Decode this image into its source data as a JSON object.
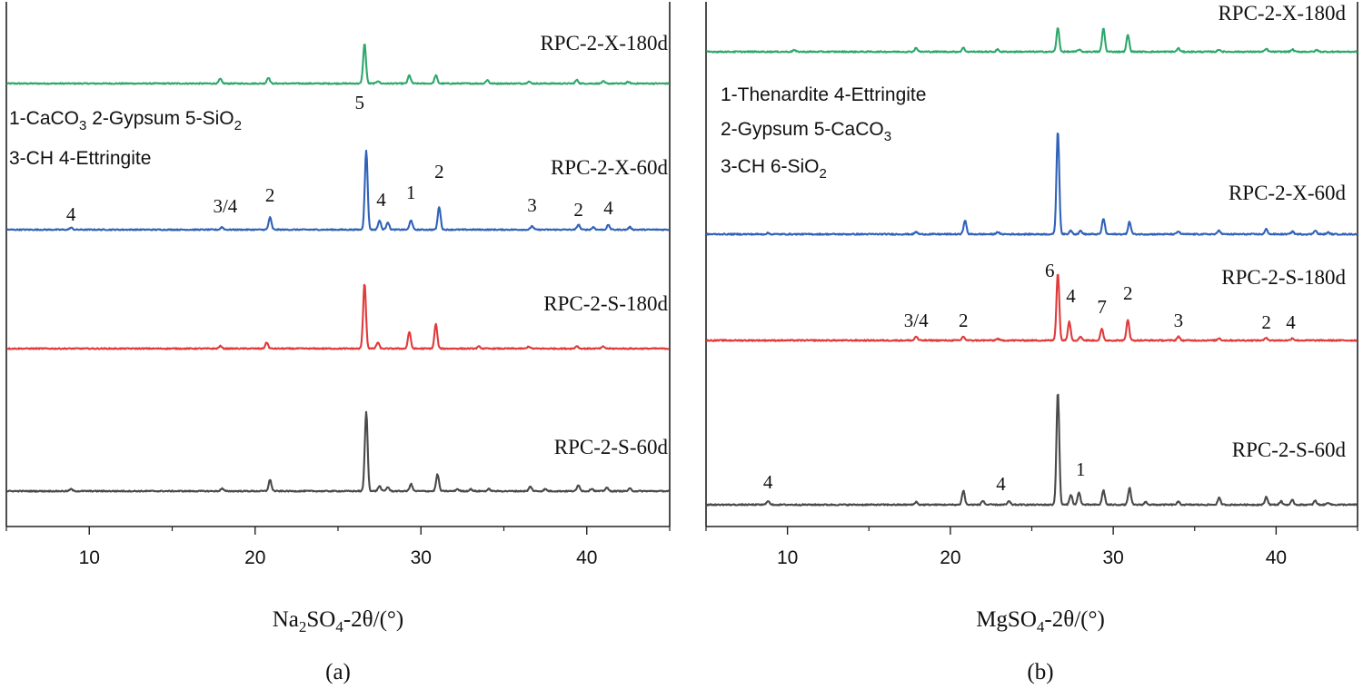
{
  "chart_data": [
    {
      "type": "line",
      "panel_label": "(a)",
      "xlabel": {
        "main": "Na",
        "sub": "2",
        "mid": "SO",
        "sub2": "4",
        "rest": "-2θ/(°)"
      },
      "xlim": [
        5,
        45
      ],
      "xticks": [
        10,
        20,
        30,
        40
      ],
      "tick_labels": [
        "10",
        "20",
        "30",
        "40"
      ],
      "legend_lines": [
        [
          {
            "t": "1-CaCO"
          },
          {
            "t": "3",
            "sub": true
          },
          {
            "t": "  2-Gypsum    5-SiO"
          },
          {
            "t": "2",
            "sub": true
          }
        ],
        [
          {
            "t": "3-CH          4-Ettringite"
          }
        ]
      ],
      "series": [
        {
          "name": "RPC-2-X-180d",
          "color": "#2ea86a",
          "peaks": [
            [
              17.9,
              0.09
            ],
            [
              20.8,
              0.12
            ],
            [
              26.6,
              0.78
            ],
            [
              27.4,
              0.05
            ],
            [
              29.3,
              0.16
            ],
            [
              30.9,
              0.16
            ],
            [
              34.0,
              0.07
            ],
            [
              36.5,
              0.04
            ],
            [
              39.4,
              0.07
            ],
            [
              41.0,
              0.04
            ],
            [
              42.5,
              0.03
            ]
          ],
          "peak_labels": []
        },
        {
          "name": "RPC-2-X-60d",
          "color": "#3062b8",
          "peaks": [
            [
              8.9,
              0.04
            ],
            [
              18.0,
              0.05
            ],
            [
              20.9,
              0.24
            ],
            [
              26.7,
              1.55
            ],
            [
              27.5,
              0.18
            ],
            [
              28.0,
              0.15
            ],
            [
              29.4,
              0.19
            ],
            [
              31.1,
              0.45
            ],
            [
              36.7,
              0.07
            ],
            [
              39.5,
              0.1
            ],
            [
              40.4,
              0.05
            ],
            [
              41.3,
              0.09
            ],
            [
              42.6,
              0.05
            ]
          ],
          "peak_labels": [
            [
              "4",
              8.9
            ],
            [
              "3/4",
              18.2
            ],
            [
              "2",
              20.9
            ],
            [
              "5",
              26.3
            ],
            [
              "4",
              27.6
            ],
            [
              "1",
              29.4
            ],
            [
              "2",
              31.1
            ],
            [
              "3",
              36.7
            ],
            [
              "2",
              39.5
            ],
            [
              "4",
              41.3
            ]
          ]
        },
        {
          "name": "RPC-2-S-180d",
          "color": "#e03a3a",
          "peaks": [
            [
              17.9,
              0.05
            ],
            [
              20.7,
              0.12
            ],
            [
              26.6,
              1.28
            ],
            [
              27.4,
              0.12
            ],
            [
              29.3,
              0.33
            ],
            [
              30.9,
              0.48
            ],
            [
              33.5,
              0.04
            ],
            [
              36.5,
              0.04
            ],
            [
              39.4,
              0.05
            ],
            [
              41.0,
              0.04
            ]
          ],
          "peak_labels": []
        },
        {
          "name": "RPC-2-S-60d",
          "color": "#4a4a4a",
          "peaks": [
            [
              8.9,
              0.04
            ],
            [
              18.0,
              0.05
            ],
            [
              20.9,
              0.22
            ],
            [
              26.7,
              1.55
            ],
            [
              27.5,
              0.1
            ],
            [
              28.0,
              0.08
            ],
            [
              29.4,
              0.14
            ],
            [
              31.0,
              0.33
            ],
            [
              32.2,
              0.04
            ],
            [
              33.0,
              0.04
            ],
            [
              34.1,
              0.04
            ],
            [
              36.6,
              0.09
            ],
            [
              37.5,
              0.04
            ],
            [
              39.5,
              0.12
            ],
            [
              40.3,
              0.05
            ],
            [
              41.2,
              0.07
            ],
            [
              42.6,
              0.05
            ]
          ],
          "peak_labels": []
        }
      ]
    },
    {
      "type": "line",
      "panel_label": "(b)",
      "xlabel": {
        "main": "MgSO",
        "sub": "4",
        "mid": "",
        "sub2": "",
        "rest": "-2θ/(°)"
      },
      "xlim": [
        5,
        45
      ],
      "xticks": [
        10,
        20,
        30,
        40
      ],
      "tick_labels": [
        "10",
        "20",
        "30",
        "40"
      ],
      "legend_lines": [
        [
          {
            "t": "1-Thenardite  4-Ettringite"
          }
        ],
        [
          {
            "t": "2-Gypsum        5-CaCO"
          },
          {
            "t": "3",
            "sub": true
          }
        ],
        [
          {
            "t": "3-CH               6-SiO"
          },
          {
            "t": "2",
            "sub": true
          }
        ]
      ],
      "series": [
        {
          "name": "RPC-2-X-180d",
          "color": "#2ea86a",
          "peaks": [
            [
              10.4,
              0.03
            ],
            [
              17.9,
              0.07
            ],
            [
              20.8,
              0.07
            ],
            [
              22.9,
              0.04
            ],
            [
              26.6,
              0.42
            ],
            [
              27.9,
              0.04
            ],
            [
              29.4,
              0.42
            ],
            [
              30.9,
              0.3
            ],
            [
              34.0,
              0.06
            ],
            [
              36.5,
              0.04
            ],
            [
              39.4,
              0.05
            ],
            [
              41.0,
              0.04
            ],
            [
              42.5,
              0.03
            ]
          ],
          "peak_labels": []
        },
        {
          "name": "RPC-2-X-60d",
          "color": "#3062b8",
          "peaks": [
            [
              8.8,
              0.02
            ],
            [
              17.9,
              0.04
            ],
            [
              20.9,
              0.25
            ],
            [
              22.9,
              0.04
            ],
            [
              26.6,
              1.83
            ],
            [
              27.4,
              0.07
            ],
            [
              28.0,
              0.06
            ],
            [
              29.4,
              0.28
            ],
            [
              31.0,
              0.22
            ],
            [
              34.0,
              0.05
            ],
            [
              36.5,
              0.07
            ],
            [
              39.4,
              0.09
            ],
            [
              41.0,
              0.05
            ],
            [
              42.4,
              0.07
            ],
            [
              43.2,
              0.03
            ]
          ],
          "peak_labels": []
        },
        {
          "name": "RPC-2-S-180d",
          "color": "#e03a3a",
          "peaks": [
            [
              17.9,
              0.07
            ],
            [
              20.8,
              0.07
            ],
            [
              22.9,
              0.03
            ],
            [
              26.6,
              1.2
            ],
            [
              27.3,
              0.34
            ],
            [
              28.0,
              0.07
            ],
            [
              29.3,
              0.2
            ],
            [
              30.9,
              0.37
            ],
            [
              34.0,
              0.07
            ],
            [
              36.5,
              0.04
            ],
            [
              39.4,
              0.05
            ],
            [
              41.0,
              0.04
            ]
          ],
          "peak_labels": [
            [
              "3/4",
              17.9
            ],
            [
              "2",
              20.8
            ],
            [
              "6",
              26.1
            ],
            [
              "4",
              27.4
            ],
            [
              "7",
              29.3
            ],
            [
              "2",
              30.9
            ],
            [
              "3",
              34.0
            ],
            [
              "2",
              39.4
            ],
            [
              "4",
              40.9
            ]
          ]
        },
        {
          "name": "RPC-2-S-60d",
          "color": "#4a4a4a",
          "peaks": [
            [
              8.8,
              0.07
            ],
            [
              17.9,
              0.05
            ],
            [
              20.8,
              0.25
            ],
            [
              22.0,
              0.07
            ],
            [
              23.6,
              0.06
            ],
            [
              26.6,
              2.0
            ],
            [
              27.4,
              0.18
            ],
            [
              27.9,
              0.22
            ],
            [
              29.4,
              0.26
            ],
            [
              31.0,
              0.3
            ],
            [
              32.0,
              0.05
            ],
            [
              34.0,
              0.05
            ],
            [
              36.5,
              0.12
            ],
            [
              39.4,
              0.14
            ],
            [
              40.3,
              0.06
            ],
            [
              41.0,
              0.08
            ],
            [
              42.4,
              0.07
            ],
            [
              43.2,
              0.04
            ]
          ],
          "peak_labels": [
            [
              "4",
              8.8
            ],
            [
              "4",
              23.1
            ],
            [
              "1",
              28.0
            ]
          ]
        }
      ]
    }
  ]
}
